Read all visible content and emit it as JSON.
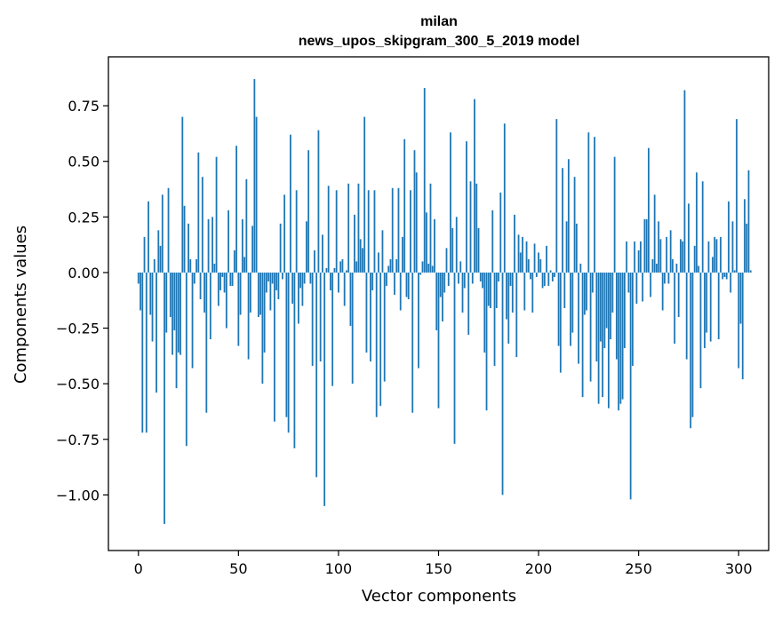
{
  "chart_data": {
    "type": "bar",
    "title": "milan",
    "subtitle": "news_upos_skipgram_300_5_2019 model",
    "xlabel": "Vector components",
    "ylabel": "Components values",
    "xlim": [
      -15,
      315
    ],
    "ylim": [
      -1.25,
      0.97
    ],
    "xticks": [
      0,
      50,
      100,
      150,
      200,
      250,
      300
    ],
    "xtick_labels": [
      "0",
      "50",
      "100",
      "150",
      "200",
      "250",
      "300"
    ],
    "yticks": [
      -1.0,
      -0.75,
      -0.5,
      -0.25,
      0.0,
      0.25,
      0.5,
      0.75
    ],
    "ytick_labels": [
      "−1.00",
      "−0.75",
      "−0.50",
      "−0.25",
      "0.00",
      "0.25",
      "0.50",
      "0.75"
    ],
    "bar_color": "#1f77b4",
    "values": [
      -0.05,
      -0.17,
      -0.72,
      0.16,
      -0.72,
      0.32,
      -0.19,
      -0.31,
      0.06,
      -0.54,
      0.19,
      0.12,
      0.35,
      -1.13,
      -0.27,
      0.38,
      -0.2,
      -0.37,
      -0.26,
      -0.52,
      -0.36,
      -0.37,
      0.7,
      0.3,
      -0.78,
      0.22,
      0.06,
      -0.43,
      -0.05,
      0.06,
      0.54,
      -0.12,
      0.43,
      -0.18,
      -0.63,
      0.24,
      -0.3,
      0.25,
      0.04,
      0.52,
      -0.15,
      -0.08,
      -0.02,
      -0.09,
      -0.25,
      0.28,
      -0.06,
      -0.06,
      0.1,
      0.57,
      -0.33,
      -0.19,
      0.24,
      0.07,
      0.42,
      -0.39,
      -0.18,
      0.21,
      0.87,
      0.7,
      -0.2,
      -0.19,
      -0.5,
      -0.36,
      -0.09,
      -0.04,
      -0.17,
      -0.05,
      -0.67,
      -0.08,
      -0.12,
      0.22,
      -0.03,
      0.35,
      -0.65,
      -0.72,
      0.62,
      -0.14,
      -0.79,
      0.37,
      -0.23,
      -0.07,
      -0.15,
      -0.05,
      0.23,
      0.55,
      -0.05,
      -0.42,
      0.1,
      -0.92,
      0.64,
      -0.4,
      0.17,
      -1.05,
      0.02,
      0.39,
      -0.08,
      -0.51,
      0.02,
      0.37,
      -0.09,
      0.05,
      0.06,
      -0.15,
      0.01,
      0.4,
      -0.24,
      -0.5,
      0.26,
      0.05,
      0.4,
      0.15,
      0.11,
      0.7,
      -0.36,
      0.37,
      -0.4,
      -0.08,
      0.37,
      -0.65,
      0.09,
      -0.6,
      0.19,
      -0.49,
      -0.06,
      0.03,
      0.06,
      0.38,
      -0.1,
      0.06,
      0.38,
      -0.17,
      0.16,
      0.6,
      -0.11,
      -0.12,
      0.37,
      -0.63,
      0.55,
      0.45,
      -0.43,
      -0.01,
      0.05,
      0.83,
      0.27,
      0.04,
      0.4,
      0.03,
      0.24,
      -0.26,
      -0.61,
      -0.11,
      -0.22,
      -0.09,
      0.11,
      -0.06,
      0.63,
      0.2,
      -0.77,
      0.25,
      -0.05,
      0.05,
      -0.18,
      -0.07,
      0.59,
      -0.28,
      0.41,
      -0.05,
      0.78,
      0.4,
      0.2,
      -0.04,
      -0.07,
      -0.36,
      -0.62,
      -0.15,
      -0.16,
      0.28,
      -0.42,
      -0.16,
      -0.04,
      0.36,
      -1.0,
      0.67,
      -0.21,
      -0.32,
      -0.06,
      -0.18,
      0.26,
      -0.38,
      0.17,
      0.09,
      0.16,
      -0.17,
      0.14,
      0.06,
      -0.03,
      -0.18,
      0.13,
      -0.02,
      0.09,
      0.06,
      -0.07,
      -0.06,
      0.12,
      -0.06,
      0.01,
      -0.04,
      -0.02,
      0.69,
      -0.33,
      -0.45,
      0.47,
      -0.16,
      0.23,
      0.51,
      -0.33,
      -0.27,
      0.43,
      0.22,
      -0.41,
      0.04,
      -0.56,
      -0.19,
      -0.17,
      0.63,
      -0.49,
      -0.09,
      0.61,
      -0.4,
      -0.59,
      -0.31,
      -0.56,
      -0.34,
      -0.25,
      -0.61,
      -0.3,
      -0.18,
      0.52,
      -0.39,
      -0.62,
      -0.59,
      -0.57,
      -0.34,
      0.14,
      -0.09,
      -1.02,
      -0.42,
      0.14,
      -0.14,
      0.1,
      0.14,
      -0.13,
      0.24,
      0.24,
      0.56,
      -0.11,
      0.06,
      0.35,
      0.04,
      0.23,
      0.15,
      -0.17,
      -0.05,
      0.16,
      -0.05,
      0.19,
      0.06,
      -0.32,
      0.04,
      -0.2,
      0.15,
      0.14,
      0.82,
      -0.39,
      0.31,
      -0.7,
      -0.65,
      0.12,
      0.45,
      0.03,
      -0.52,
      0.41,
      -0.34,
      -0.27,
      0.14,
      -0.31,
      0.07,
      0.16,
      0.15,
      -0.3,
      0.16,
      -0.03,
      -0.02,
      -0.03,
      0.32,
      -0.09,
      0.23,
      0.01,
      0.69,
      -0.43,
      -0.23,
      -0.48,
      0.33,
      0.22,
      0.46,
      0.01
    ]
  }
}
